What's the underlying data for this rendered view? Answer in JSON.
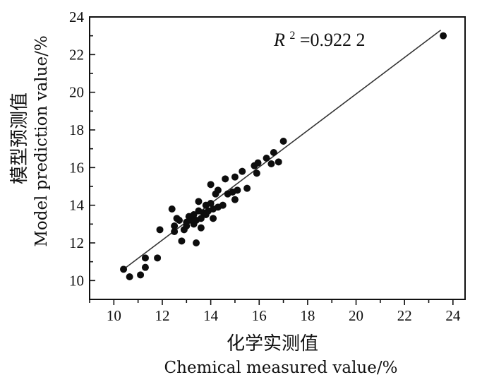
{
  "chart_data": {
    "type": "scatter",
    "title": "",
    "xlabel_cn": "化学实测值",
    "xlabel_en": "Chemical measured value/%",
    "ylabel_cn": "模型预测值",
    "ylabel_en": "Model prediction value/%",
    "annotation": {
      "r_symbol": "R",
      "r_exponent": "2",
      "r_value": "=0.922 2"
    },
    "xlim": [
      9,
      24.5
    ],
    "ylim": [
      9,
      24
    ],
    "x_ticks": [
      10,
      12,
      14,
      16,
      18,
      20,
      22,
      24
    ],
    "y_ticks": [
      10,
      12,
      14,
      16,
      18,
      20,
      22,
      24
    ],
    "grid": false,
    "fit_line": {
      "x": [
        10.4,
        23.5
      ],
      "y": [
        10.6,
        23.3
      ]
    },
    "series": [
      {
        "points": [
          [
            10.4,
            10.6
          ],
          [
            10.65,
            10.2
          ],
          [
            11.1,
            10.3
          ],
          [
            11.3,
            10.7
          ],
          [
            11.3,
            11.2
          ],
          [
            11.8,
            11.2
          ],
          [
            11.9,
            12.7
          ],
          [
            12.4,
            13.8
          ],
          [
            12.5,
            12.6
          ],
          [
            12.5,
            12.9
          ],
          [
            12.6,
            13.3
          ],
          [
            12.7,
            13.2
          ],
          [
            12.8,
            12.1
          ],
          [
            12.9,
            12.7
          ],
          [
            13.0,
            12.9
          ],
          [
            13.0,
            13.1
          ],
          [
            13.1,
            13.4
          ],
          [
            13.2,
            13.2
          ],
          [
            13.3,
            13.5
          ],
          [
            13.3,
            13.0
          ],
          [
            13.4,
            13.2
          ],
          [
            13.4,
            12.0
          ],
          [
            13.5,
            13.7
          ],
          [
            13.5,
            14.2
          ],
          [
            13.6,
            13.3
          ],
          [
            13.6,
            12.8
          ],
          [
            13.7,
            13.6
          ],
          [
            13.8,
            14.0
          ],
          [
            13.8,
            13.5
          ],
          [
            13.9,
            13.7
          ],
          [
            14.0,
            14.1
          ],
          [
            14.0,
            15.1
          ],
          [
            14.1,
            13.8
          ],
          [
            14.1,
            13.3
          ],
          [
            14.2,
            14.6
          ],
          [
            14.3,
            14.8
          ],
          [
            14.3,
            13.9
          ],
          [
            14.5,
            14.0
          ],
          [
            14.6,
            15.4
          ],
          [
            14.7,
            14.6
          ],
          [
            14.9,
            14.7
          ],
          [
            15.0,
            14.3
          ],
          [
            15.0,
            15.5
          ],
          [
            15.1,
            14.8
          ],
          [
            15.3,
            15.8
          ],
          [
            15.5,
            14.9
          ],
          [
            15.8,
            16.1
          ],
          [
            15.9,
            15.7
          ],
          [
            15.95,
            16.25
          ],
          [
            16.3,
            16.5
          ],
          [
            16.5,
            16.2
          ],
          [
            16.6,
            16.8
          ],
          [
            16.8,
            16.3
          ],
          [
            17.0,
            17.4
          ],
          [
            23.6,
            23.0
          ]
        ]
      }
    ]
  }
}
